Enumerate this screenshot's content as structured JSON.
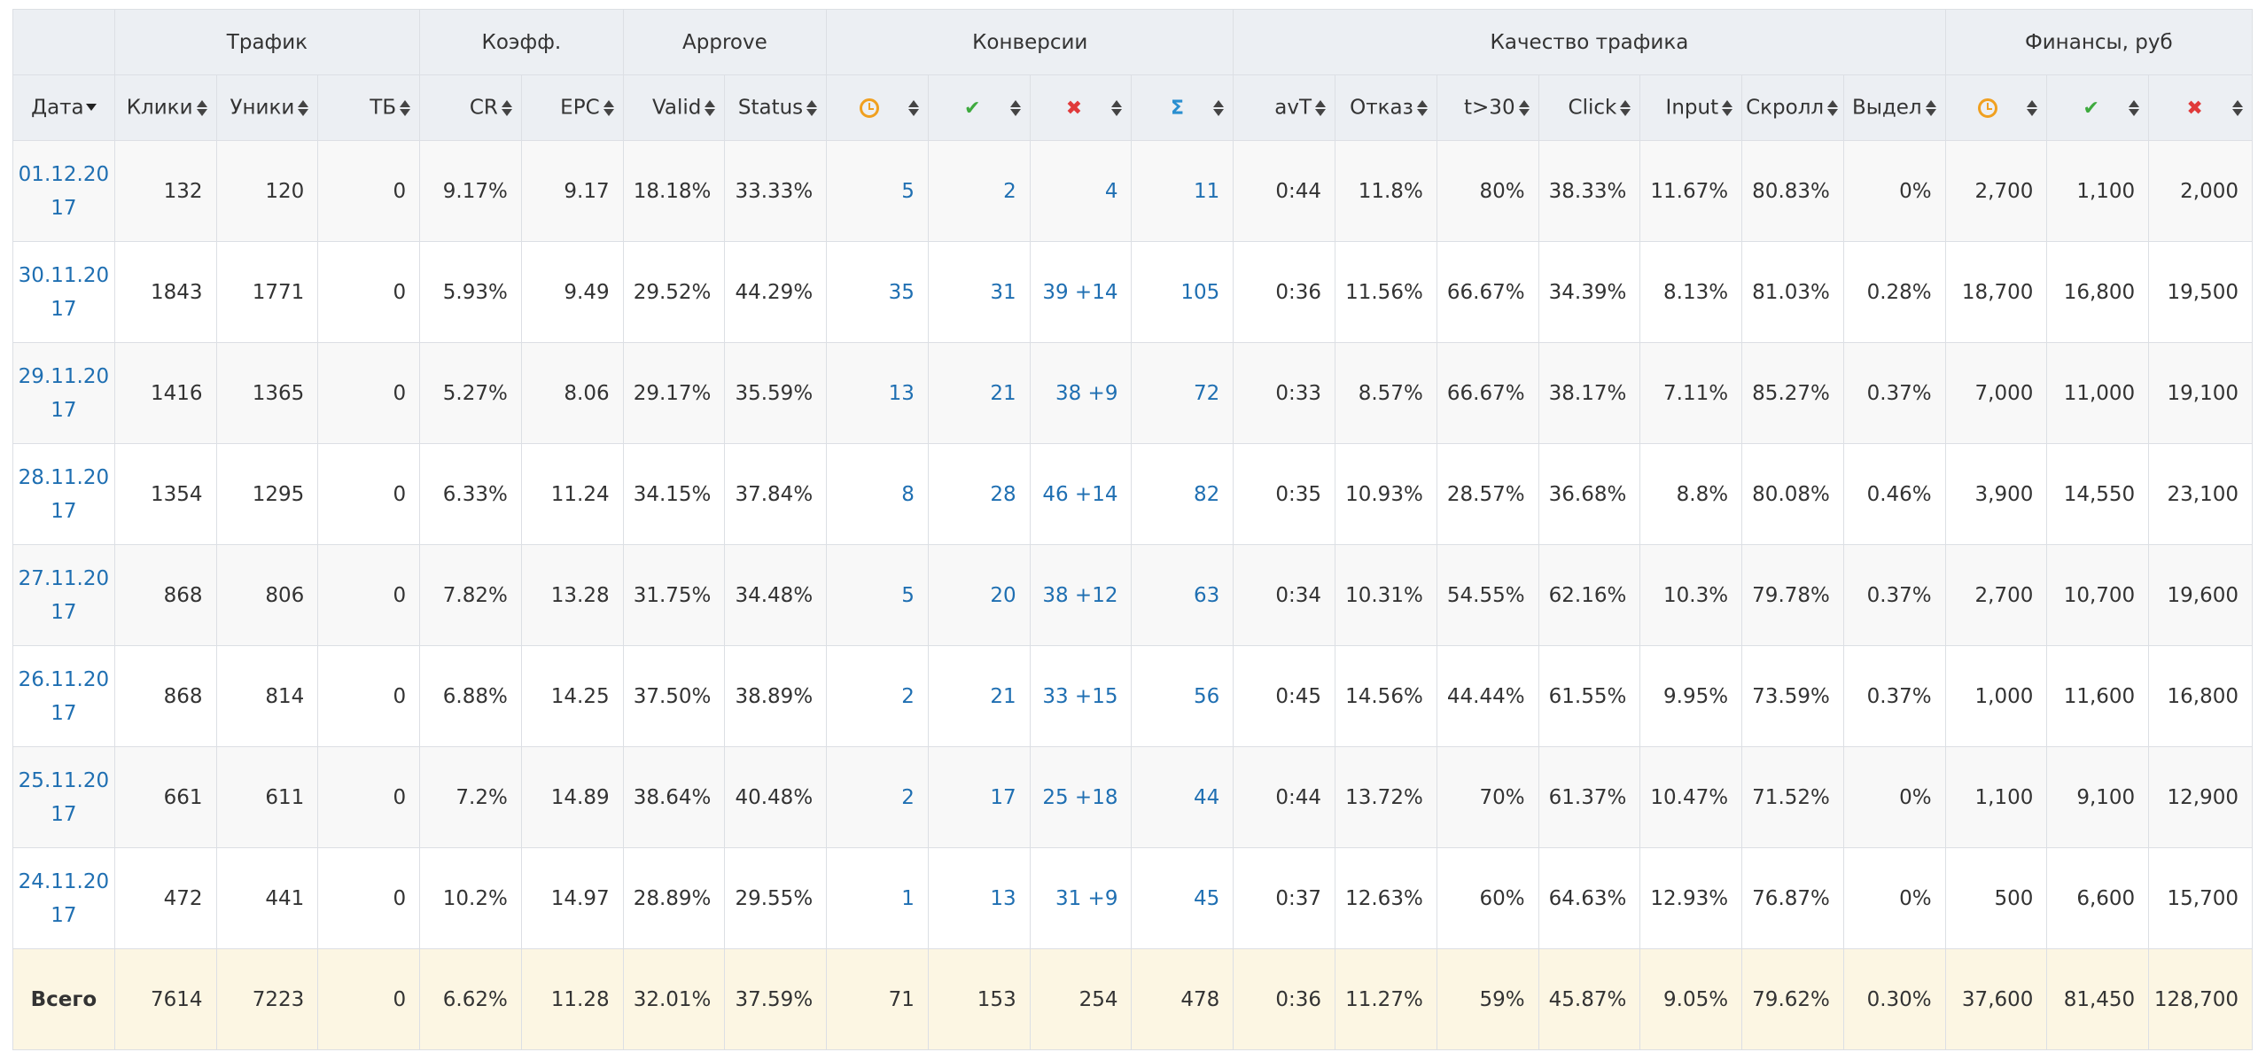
{
  "groups": [
    {
      "label": "",
      "span": 1
    },
    {
      "label": "Трафик",
      "span": 3
    },
    {
      "label": "Коэфф.",
      "span": 2
    },
    {
      "label": "Approve",
      "span": 2
    },
    {
      "label": "Конверсии",
      "span": 4
    },
    {
      "label": "Качество трафика",
      "span": 7
    },
    {
      "label": "Финансы, руб",
      "span": 3
    }
  ],
  "columns": {
    "date": "Дата",
    "clicks": "Клики",
    "uniques": "Уники",
    "tb": "ТБ",
    "cr": "CR",
    "epc": "EPC",
    "valid": "Valid",
    "status": "Status",
    "avt": "avT",
    "bounce": "Отказ",
    "t30": "t>30",
    "click": "Click",
    "input": "Input",
    "scroll": "Скролл",
    "select": "Выдел"
  },
  "icons": {
    "pending": "clock-icon",
    "approved": "check-icon",
    "rejected": "cross-icon",
    "sum": "sigma-icon",
    "check_glyph": "✔",
    "cross_glyph": "✖",
    "sigma_glyph": "Σ"
  },
  "colors": {
    "link": "#1f6fb2",
    "pending": "#f0a020",
    "approved": "#3eaa3e",
    "rejected": "#e03a3a",
    "total_bg": "#fcf6e3"
  },
  "rows": [
    {
      "date": "01.12.2017",
      "clicks": "132",
      "uniques": "120",
      "tb": "0",
      "cr": "9.17%",
      "epc": "9.17",
      "valid": "18.18%",
      "status": "33.33%",
      "conv_pending": "5",
      "conv_approved": "2",
      "conv_rejected": "4",
      "conv_sum": "11",
      "avt": "0:44",
      "bounce": "11.8%",
      "t30": "80%",
      "click": "38.33%",
      "input": "11.67%",
      "scroll": "80.83%",
      "select": "0%",
      "fin_pending": "2,700",
      "fin_approved": "1,100",
      "fin_rejected": "2,000"
    },
    {
      "date": "30.11.2017",
      "clicks": "1843",
      "uniques": "1771",
      "tb": "0",
      "cr": "5.93%",
      "epc": "9.49",
      "valid": "29.52%",
      "status": "44.29%",
      "conv_pending": "35",
      "conv_approved": "31",
      "conv_rejected": "39 +14",
      "conv_sum": "105",
      "avt": "0:36",
      "bounce": "11.56%",
      "t30": "66.67%",
      "click": "34.39%",
      "input": "8.13%",
      "scroll": "81.03%",
      "select": "0.28%",
      "fin_pending": "18,700",
      "fin_approved": "16,800",
      "fin_rejected": "19,500"
    },
    {
      "date": "29.11.2017",
      "clicks": "1416",
      "uniques": "1365",
      "tb": "0",
      "cr": "5.27%",
      "epc": "8.06",
      "valid": "29.17%",
      "status": "35.59%",
      "conv_pending": "13",
      "conv_approved": "21",
      "conv_rejected": "38 +9",
      "conv_sum": "72",
      "avt": "0:33",
      "bounce": "8.57%",
      "t30": "66.67%",
      "click": "38.17%",
      "input": "7.11%",
      "scroll": "85.27%",
      "select": "0.37%",
      "fin_pending": "7,000",
      "fin_approved": "11,000",
      "fin_rejected": "19,100"
    },
    {
      "date": "28.11.2017",
      "clicks": "1354",
      "uniques": "1295",
      "tb": "0",
      "cr": "6.33%",
      "epc": "11.24",
      "valid": "34.15%",
      "status": "37.84%",
      "conv_pending": "8",
      "conv_approved": "28",
      "conv_rejected": "46 +14",
      "conv_sum": "82",
      "avt": "0:35",
      "bounce": "10.93%",
      "t30": "28.57%",
      "click": "36.68%",
      "input": "8.8%",
      "scroll": "80.08%",
      "select": "0.46%",
      "fin_pending": "3,900",
      "fin_approved": "14,550",
      "fin_rejected": "23,100"
    },
    {
      "date": "27.11.2017",
      "clicks": "868",
      "uniques": "806",
      "tb": "0",
      "cr": "7.82%",
      "epc": "13.28",
      "valid": "31.75%",
      "status": "34.48%",
      "conv_pending": "5",
      "conv_approved": "20",
      "conv_rejected": "38 +12",
      "conv_sum": "63",
      "avt": "0:34",
      "bounce": "10.31%",
      "t30": "54.55%",
      "click": "62.16%",
      "input": "10.3%",
      "scroll": "79.78%",
      "select": "0.37%",
      "fin_pending": "2,700",
      "fin_approved": "10,700",
      "fin_rejected": "19,600"
    },
    {
      "date": "26.11.2017",
      "clicks": "868",
      "uniques": "814",
      "tb": "0",
      "cr": "6.88%",
      "epc": "14.25",
      "valid": "37.50%",
      "status": "38.89%",
      "conv_pending": "2",
      "conv_approved": "21",
      "conv_rejected": "33 +15",
      "conv_sum": "56",
      "avt": "0:45",
      "bounce": "14.56%",
      "t30": "44.44%",
      "click": "61.55%",
      "input": "9.95%",
      "scroll": "73.59%",
      "select": "0.37%",
      "fin_pending": "1,000",
      "fin_approved": "11,600",
      "fin_rejected": "16,800"
    },
    {
      "date": "25.11.2017",
      "clicks": "661",
      "uniques": "611",
      "tb": "0",
      "cr": "7.2%",
      "epc": "14.89",
      "valid": "38.64%",
      "status": "40.48%",
      "conv_pending": "2",
      "conv_approved": "17",
      "conv_rejected": "25 +18",
      "conv_sum": "44",
      "avt": "0:44",
      "bounce": "13.72%",
      "t30": "70%",
      "click": "61.37%",
      "input": "10.47%",
      "scroll": "71.52%",
      "select": "0%",
      "fin_pending": "1,100",
      "fin_approved": "9,100",
      "fin_rejected": "12,900"
    },
    {
      "date": "24.11.2017",
      "clicks": "472",
      "uniques": "441",
      "tb": "0",
      "cr": "10.2%",
      "epc": "14.97",
      "valid": "28.89%",
      "status": "29.55%",
      "conv_pending": "1",
      "conv_approved": "13",
      "conv_rejected": "31 +9",
      "conv_sum": "45",
      "avt": "0:37",
      "bounce": "12.63%",
      "t30": "60%",
      "click": "64.63%",
      "input": "12.93%",
      "scroll": "76.87%",
      "select": "0%",
      "fin_pending": "500",
      "fin_approved": "6,600",
      "fin_rejected": "15,700"
    }
  ],
  "total": {
    "date": "Всего",
    "clicks": "7614",
    "uniques": "7223",
    "tb": "0",
    "cr": "6.62%",
    "epc": "11.28",
    "valid": "32.01%",
    "status": "37.59%",
    "conv_pending": "71",
    "conv_approved": "153",
    "conv_rejected": "254",
    "conv_sum": "478",
    "avt": "0:36",
    "bounce": "11.27%",
    "t30": "59%",
    "click": "45.87%",
    "input": "9.05%",
    "scroll": "79.62%",
    "select": "0.30%",
    "fin_pending": "37,600",
    "fin_approved": "81,450",
    "fin_rejected": "128,700"
  }
}
